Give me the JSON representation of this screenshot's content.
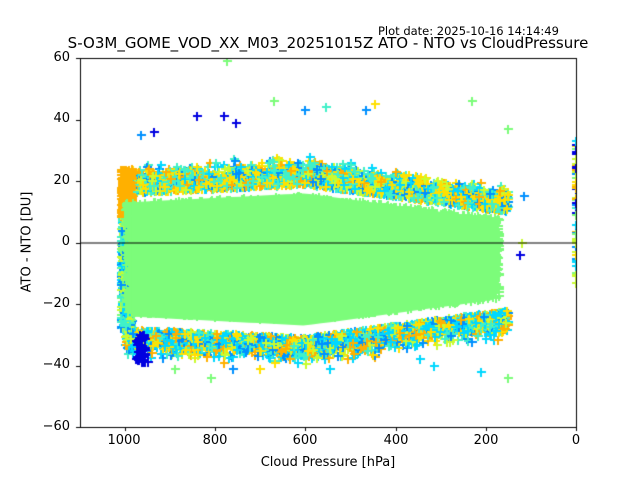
{
  "plot_date": "Plot date: 2025-10-16 14:14:49",
  "chart_data": {
    "type": "scatter",
    "title": "S-O3M_GOME_VOD_XX_M03_20251015Z ATO - NTO vs CloudPressure",
    "xlabel": "Cloud Pressure [hPa]",
    "ylabel": "ATO - NTO [DU]",
    "xlim": [
      1100,
      0
    ],
    "ylim": [
      -60,
      60
    ],
    "xticks": [
      1000,
      800,
      600,
      400,
      200,
      0
    ],
    "xtick_labels": [
      "1000",
      "800",
      "600",
      "400",
      "200",
      "0"
    ],
    "yticks": [
      60,
      40,
      20,
      0,
      -20,
      -40,
      -60
    ],
    "ytick_labels": [
      "60",
      "40",
      "20",
      "0",
      "−20",
      "−40",
      "−60"
    ],
    "reference_line_y": 0,
    "marker": "+",
    "grid": false,
    "colormap": "jet",
    "color_classes": [
      "#0000e0",
      "#0090ff",
      "#00d8ff",
      "#40f0c8",
      "#7cfc7a",
      "#c8fc30",
      "#ffe000",
      "#ffb000"
    ],
    "main_cloud": {
      "x_range": [
        1000,
        150
      ],
      "y_center": -5,
      "y_half_spread_at_1000": 27,
      "y_half_spread_at_600": 30,
      "y_half_spread_at_200": 22,
      "dominant_color": "#7cfc7a"
    },
    "edge_cluster_x0": {
      "x": 0,
      "y_range": [
        -14,
        33
      ]
    },
    "outliers": [
      {
        "x": 775,
        "y": 59,
        "c": "#7cfc7a"
      },
      {
        "x": 840,
        "y": 41,
        "c": "#0000e0"
      },
      {
        "x": 780,
        "y": 41,
        "c": "#0000e0"
      },
      {
        "x": 755,
        "y": 39,
        "c": "#0000e0"
      },
      {
        "x": 670,
        "y": 46,
        "c": "#7cfc7a"
      },
      {
        "x": 600,
        "y": 43,
        "c": "#0090ff"
      },
      {
        "x": 445,
        "y": 45,
        "c": "#ffe000"
      },
      {
        "x": 465,
        "y": 43,
        "c": "#0090ff"
      },
      {
        "x": 555,
        "y": 44,
        "c": "#40f0c8"
      },
      {
        "x": 230,
        "y": 46,
        "c": "#7cfc7a"
      },
      {
        "x": 150,
        "y": 37,
        "c": "#7cfc7a"
      },
      {
        "x": 115,
        "y": 15,
        "c": "#0090ff"
      },
      {
        "x": 935,
        "y": 36,
        "c": "#0000e0"
      },
      {
        "x": 965,
        "y": 35,
        "c": "#0090ff"
      },
      {
        "x": 210,
        "y": -42,
        "c": "#00d8ff"
      },
      {
        "x": 150,
        "y": -44,
        "c": "#7cfc7a"
      },
      {
        "x": 810,
        "y": -44,
        "c": "#7cfc7a"
      },
      {
        "x": 700,
        "y": -41,
        "c": "#ffe000"
      },
      {
        "x": 760,
        "y": -41,
        "c": "#0090ff"
      },
      {
        "x": 545,
        "y": -41,
        "c": "#00d8ff"
      },
      {
        "x": 315,
        "y": -40,
        "c": "#00d8ff"
      },
      {
        "x": 345,
        "y": -38,
        "c": "#00d8ff"
      },
      {
        "x": 635,
        "y": -38,
        "c": "#ffb000"
      },
      {
        "x": 950,
        "y": -39,
        "c": "#0000e0"
      },
      {
        "x": 960,
        "y": -37,
        "c": "#0000e0"
      },
      {
        "x": 955,
        "y": -35,
        "c": "#0000e0"
      },
      {
        "x": 890,
        "y": -41,
        "c": "#7cfc7a"
      },
      {
        "x": 125,
        "y": -4,
        "c": "#0000e0"
      },
      {
        "x": 120,
        "y": 0,
        "c": "#c8fc30"
      }
    ]
  }
}
